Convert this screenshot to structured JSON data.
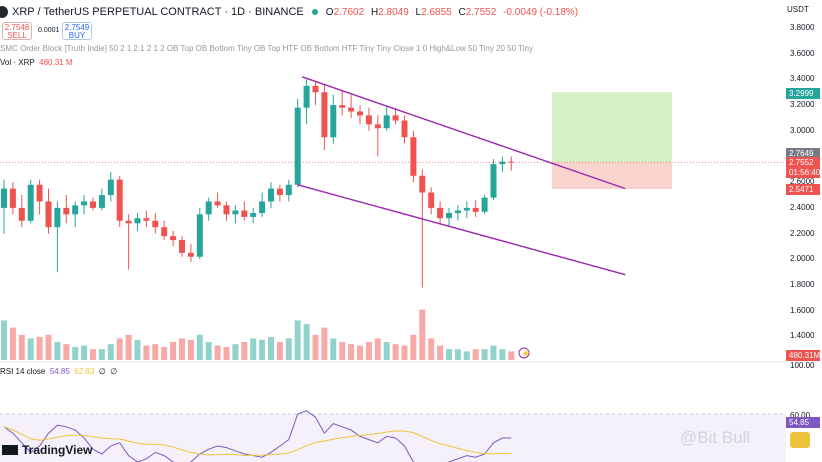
{
  "header": {
    "title": "XRP / TetherUS PERPETUAL CONTRACT · 1D · BINANCE",
    "ohlc": {
      "o": "O",
      "o_val": "2.7602",
      "h": "H",
      "h_val": "2.8049",
      "l": "L",
      "l_val": "2.6855",
      "c": "C",
      "c_val": "2.7552",
      "chg": "-0.0049 (-0.18%)"
    }
  },
  "trade": {
    "sell_price": "2.7548",
    "sell_label": "SELL",
    "spread": "0.0001",
    "buy_price": "2.7549",
    "buy_label": "BUY"
  },
  "indicator_line": "SMC Order Block [Truth Indie] 50 2 1 2 1 2 1 2 OB Top OB Bottom Tiny OB Top HTF OB Bottom HTF Tiny Tiny Close 1 0 High&Low 50 Tiny 20 50 Tiny",
  "volume": {
    "label": "Vol · XRP",
    "value": "480.31 M",
    "tag": "480.31M"
  },
  "rsi": {
    "label": "RSI 14 close",
    "value": "54.85",
    "ma": "62.83",
    "empty1": "∅",
    "empty2": "∅",
    "tag": "54.85",
    "levels": [
      "100.00",
      "60.00"
    ]
  },
  "axis": {
    "currency": "USDT",
    "ticks": [
      "3.8000",
      "3.6000",
      "3.4000",
      "3.2000",
      "3.0000",
      "2.8000",
      "2.6000",
      "2.4000",
      "2.2000",
      "2.0000",
      "1.8000",
      "1.6000",
      "1.4000"
    ],
    "tags": {
      "tp": "3.2999",
      "high": "2.7649",
      "last": "2.7552",
      "countdown": "01:56:40",
      "stop": "2.5471"
    }
  },
  "brand": "TradingView",
  "watermark": "@Bit Bull",
  "colors": {
    "up": "#26a69a",
    "down": "#ef5350",
    "channel": "#9c27b0",
    "rsi": "#7e57c2",
    "rsi_ma": "#f0c33c",
    "tp_zone": "#d6efc4",
    "sl_zone": "#f9d3cd"
  },
  "chart_data": {
    "type": "candlestick",
    "timeframe": "1D",
    "ylim": [
      1.3,
      3.9
    ],
    "candles": [
      {
        "o": 2.4,
        "h": 2.62,
        "l": 2.2,
        "c": 2.55
      },
      {
        "o": 2.55,
        "h": 2.6,
        "l": 2.35,
        "c": 2.4
      },
      {
        "o": 2.4,
        "h": 2.5,
        "l": 2.25,
        "c": 2.3
      },
      {
        "o": 2.3,
        "h": 2.62,
        "l": 2.28,
        "c": 2.58
      },
      {
        "o": 2.58,
        "h": 2.62,
        "l": 2.35,
        "c": 2.45
      },
      {
        "o": 2.45,
        "h": 2.55,
        "l": 2.2,
        "c": 2.25
      },
      {
        "o": 2.25,
        "h": 2.45,
        "l": 1.9,
        "c": 2.4
      },
      {
        "o": 2.4,
        "h": 2.5,
        "l": 2.28,
        "c": 2.35
      },
      {
        "o": 2.35,
        "h": 2.45,
        "l": 2.25,
        "c": 2.42
      },
      {
        "o": 2.42,
        "h": 2.5,
        "l": 2.35,
        "c": 2.45
      },
      {
        "o": 2.45,
        "h": 2.48,
        "l": 2.38,
        "c": 2.4
      },
      {
        "o": 2.4,
        "h": 2.55,
        "l": 2.38,
        "c": 2.5
      },
      {
        "o": 2.5,
        "h": 2.68,
        "l": 2.45,
        "c": 2.62
      },
      {
        "o": 2.62,
        "h": 2.65,
        "l": 2.25,
        "c": 2.3
      },
      {
        "o": 2.3,
        "h": 2.35,
        "l": 1.92,
        "c": 2.28
      },
      {
        "o": 2.28,
        "h": 2.36,
        "l": 2.22,
        "c": 2.32
      },
      {
        "o": 2.32,
        "h": 2.38,
        "l": 2.25,
        "c": 2.3
      },
      {
        "o": 2.3,
        "h": 2.36,
        "l": 2.2,
        "c": 2.25
      },
      {
        "o": 2.25,
        "h": 2.3,
        "l": 2.15,
        "c": 2.18
      },
      {
        "o": 2.18,
        "h": 2.22,
        "l": 2.1,
        "c": 2.15
      },
      {
        "o": 2.15,
        "h": 2.18,
        "l": 2.02,
        "c": 2.05
      },
      {
        "o": 2.05,
        "h": 2.12,
        "l": 1.98,
        "c": 2.02
      },
      {
        "o": 2.02,
        "h": 2.4,
        "l": 2.0,
        "c": 2.35
      },
      {
        "o": 2.35,
        "h": 2.48,
        "l": 2.3,
        "c": 2.45
      },
      {
        "o": 2.45,
        "h": 2.52,
        "l": 2.4,
        "c": 2.42
      },
      {
        "o": 2.42,
        "h": 2.45,
        "l": 2.3,
        "c": 2.35
      },
      {
        "o": 2.35,
        "h": 2.42,
        "l": 2.28,
        "c": 2.38
      },
      {
        "o": 2.38,
        "h": 2.45,
        "l": 2.3,
        "c": 2.33
      },
      {
        "o": 2.33,
        "h": 2.4,
        "l": 2.28,
        "c": 2.36
      },
      {
        "o": 2.36,
        "h": 2.52,
        "l": 2.33,
        "c": 2.45
      },
      {
        "o": 2.45,
        "h": 2.6,
        "l": 2.4,
        "c": 2.55
      },
      {
        "o": 2.55,
        "h": 2.58,
        "l": 2.45,
        "c": 2.5
      },
      {
        "o": 2.5,
        "h": 2.62,
        "l": 2.45,
        "c": 2.58
      },
      {
        "o": 2.58,
        "h": 3.25,
        "l": 2.56,
        "c": 3.18
      },
      {
        "o": 3.18,
        "h": 3.4,
        "l": 3.05,
        "c": 3.35
      },
      {
        "o": 3.35,
        "h": 3.38,
        "l": 3.2,
        "c": 3.3
      },
      {
        "o": 3.3,
        "h": 3.36,
        "l": 2.85,
        "c": 2.95
      },
      {
        "o": 2.95,
        "h": 3.28,
        "l": 2.9,
        "c": 3.2
      },
      {
        "o": 3.2,
        "h": 3.32,
        "l": 3.12,
        "c": 3.18
      },
      {
        "o": 3.18,
        "h": 3.28,
        "l": 3.1,
        "c": 3.15
      },
      {
        "o": 3.15,
        "h": 3.2,
        "l": 3.05,
        "c": 3.12
      },
      {
        "o": 3.12,
        "h": 3.18,
        "l": 3.0,
        "c": 3.05
      },
      {
        "o": 3.05,
        "h": 3.12,
        "l": 2.8,
        "c": 3.02
      },
      {
        "o": 3.02,
        "h": 3.2,
        "l": 3.0,
        "c": 3.12
      },
      {
        "o": 3.12,
        "h": 3.18,
        "l": 3.05,
        "c": 3.08
      },
      {
        "o": 3.08,
        "h": 3.12,
        "l": 2.9,
        "c": 2.95
      },
      {
        "o": 2.95,
        "h": 3.0,
        "l": 2.6,
        "c": 2.65
      },
      {
        "o": 2.65,
        "h": 2.7,
        "l": 1.78,
        "c": 2.52
      },
      {
        "o": 2.52,
        "h": 2.56,
        "l": 2.35,
        "c": 2.4
      },
      {
        "o": 2.4,
        "h": 2.45,
        "l": 2.28,
        "c": 2.32
      },
      {
        "o": 2.32,
        "h": 2.4,
        "l": 2.26,
        "c": 2.36
      },
      {
        "o": 2.36,
        "h": 2.42,
        "l": 2.3,
        "c": 2.38
      },
      {
        "o": 2.38,
        "h": 2.45,
        "l": 2.32,
        "c": 2.4
      },
      {
        "o": 2.4,
        "h": 2.46,
        "l": 2.33,
        "c": 2.37
      },
      {
        "o": 2.37,
        "h": 2.5,
        "l": 2.35,
        "c": 2.48
      },
      {
        "o": 2.48,
        "h": 2.78,
        "l": 2.46,
        "c": 2.74
      },
      {
        "o": 2.74,
        "h": 2.8,
        "l": 2.68,
        "c": 2.76
      },
      {
        "o": 2.76,
        "h": 2.8,
        "l": 2.69,
        "c": 2.755
      }
    ],
    "volume_rel": [
      0.55,
      0.45,
      0.35,
      0.3,
      0.32,
      0.35,
      0.25,
      0.22,
      0.18,
      0.2,
      0.15,
      0.15,
      0.22,
      0.3,
      0.35,
      0.28,
      0.2,
      0.22,
      0.18,
      0.25,
      0.3,
      0.28,
      0.35,
      0.25,
      0.2,
      0.18,
      0.22,
      0.25,
      0.3,
      0.28,
      0.32,
      0.25,
      0.3,
      0.55,
      0.5,
      0.35,
      0.45,
      0.3,
      0.25,
      0.22,
      0.2,
      0.25,
      0.3,
      0.25,
      0.22,
      0.2,
      0.35,
      0.7,
      0.3,
      0.2,
      0.15,
      0.15,
      0.12,
      0.15,
      0.15,
      0.2,
      0.15,
      0.12
    ],
    "channel": {
      "upper": [
        {
          "i": 33.5,
          "p": 3.42
        },
        {
          "i": 67,
          "p": 2.55
        }
      ],
      "lower": [
        {
          "i": 33,
          "p": 2.58
        },
        {
          "i": 67,
          "p": 1.88
        }
      ]
    },
    "position": {
      "entry": 2.7552,
      "tp": 3.2999,
      "stop": 2.5471
    },
    "rsi_values": [
      62,
      58,
      52,
      46,
      50,
      58,
      63,
      62,
      60,
      55,
      48,
      45,
      50,
      52,
      44,
      40,
      42,
      46,
      44,
      40,
      38,
      40,
      45,
      48,
      50,
      49,
      47,
      45,
      44,
      43,
      46,
      50,
      54,
      70,
      72,
      68,
      58,
      64,
      62,
      60,
      56,
      54,
      52,
      56,
      55,
      50,
      40,
      36,
      38,
      38,
      40,
      42,
      44,
      43,
      45,
      52,
      55,
      55
    ]
  }
}
